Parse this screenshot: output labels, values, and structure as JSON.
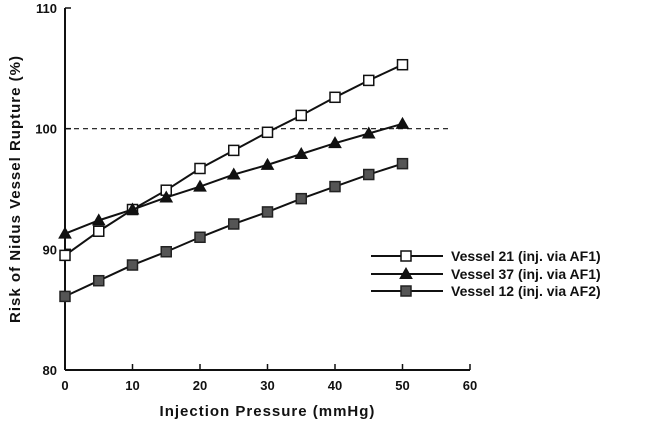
{
  "chart_data": {
    "type": "line",
    "xlabel": "Injection Pressure (mmHg)",
    "ylabel": "Risk of Nidus Vessel Rupture (%)",
    "xlim": [
      0,
      60
    ],
    "ylim": [
      80,
      110
    ],
    "x_ticks": [
      "0",
      "10",
      "20",
      "30",
      "40",
      "50",
      "60"
    ],
    "y_ticks": [
      "80",
      "90",
      "100",
      "110"
    ],
    "grid": false,
    "legend_position": "right",
    "reference_line": {
      "y": 100,
      "style": "dashed"
    },
    "x": [
      0,
      5,
      10,
      15,
      20,
      25,
      30,
      35,
      40,
      45,
      50
    ],
    "series": [
      {
        "name": "Vessel 21 (inj. via AF1)",
        "marker": "open-square",
        "color": "#111111",
        "values": [
          89.5,
          91.5,
          93.3,
          94.9,
          96.7,
          98.2,
          99.7,
          101.1,
          102.6,
          104.0,
          105.3
        ]
      },
      {
        "name": "Vessel 37 (inj. via AF1)",
        "marker": "filled-triangle",
        "color": "#111111",
        "values": [
          91.3,
          92.4,
          93.3,
          94.3,
          95.2,
          96.2,
          97.0,
          97.9,
          98.8,
          99.6,
          100.4
        ]
      },
      {
        "name": "Vessel 12 (inj. via AF2)",
        "marker": "filled-square-gray",
        "color": "#111111",
        "values": [
          86.1,
          87.4,
          88.7,
          89.8,
          91.0,
          92.1,
          93.1,
          94.2,
          95.2,
          96.2,
          97.1
        ]
      }
    ]
  }
}
